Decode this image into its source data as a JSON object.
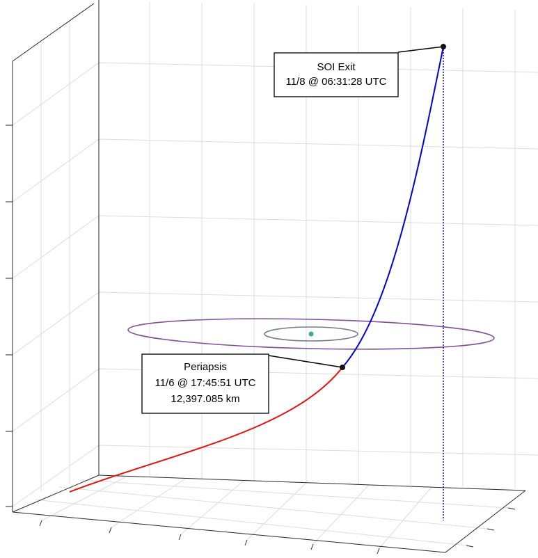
{
  "annotations": [
    {
      "title": "SOI Exit",
      "lines": [
        "11/8 @ 06:31:28 UTC"
      ]
    },
    {
      "title": "Periapsis",
      "lines": [
        "11/6 @ 17:45:51 UTC",
        "12,397.085 km"
      ]
    }
  ]
}
